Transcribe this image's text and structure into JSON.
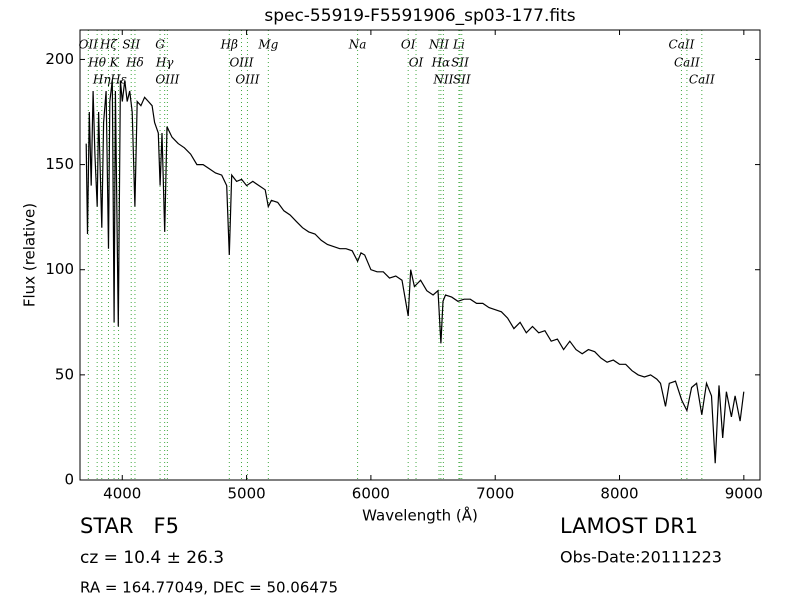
{
  "chart_data": {
    "type": "line",
    "title": "spec-55919-F5591906_sp03-177.fits",
    "x_label": "Wavelength (Å)",
    "y_label": "Flux (relative)",
    "xlim": [
      3660,
      9130
    ],
    "ylim": [
      0,
      214
    ],
    "xticks": [
      4000,
      5000,
      6000,
      7000,
      8000,
      9000
    ],
    "yticks": [
      0,
      50,
      100,
      150,
      200
    ],
    "color": "#000000",
    "line_color": "#44aa44",
    "x": [
      3710,
      3720,
      3735,
      3750,
      3765,
      3780,
      3798,
      3810,
      3835,
      3850,
      3870,
      3889,
      3900,
      3920,
      3934,
      3945,
      3968,
      3985,
      4000,
      4020,
      4040,
      4060,
      4080,
      4102,
      4120,
      4150,
      4180,
      4210,
      4240,
      4260,
      4290,
      4304,
      4320,
      4341,
      4360,
      4400,
      4450,
      4500,
      4550,
      4600,
      4650,
      4700,
      4750,
      4800,
      4840,
      4861,
      4880,
      4920,
      4960,
      5000,
      5050,
      5100,
      5150,
      5175,
      5200,
      5250,
      5300,
      5350,
      5400,
      5450,
      5500,
      5550,
      5600,
      5650,
      5700,
      5750,
      5800,
      5850,
      5893,
      5920,
      5950,
      6000,
      6050,
      6100,
      6150,
      6200,
      6250,
      6300,
      6320,
      6350,
      6400,
      6450,
      6500,
      6540,
      6563,
      6580,
      6600,
      6650,
      6700,
      6750,
      6800,
      6850,
      6900,
      6950,
      7000,
      7050,
      7100,
      7150,
      7200,
      7250,
      7300,
      7350,
      7400,
      7450,
      7500,
      7550,
      7600,
      7650,
      7700,
      7750,
      7800,
      7850,
      7900,
      7950,
      8000,
      8050,
      8100,
      8150,
      8200,
      8250,
      8300,
      8330,
      8370,
      8400,
      8450,
      8500,
      8542,
      8580,
      8620,
      8662,
      8700,
      8740,
      8770,
      8800,
      8830,
      8860,
      8900,
      8930,
      8970,
      9000
    ],
    "values": [
      160,
      117,
      175,
      140,
      185,
      155,
      130,
      175,
      120,
      170,
      185,
      110,
      180,
      190,
      75,
      185,
      73,
      190,
      180,
      190,
      180,
      185,
      175,
      130,
      180,
      178,
      182,
      180,
      178,
      170,
      165,
      140,
      165,
      118,
      168,
      163,
      160,
      158,
      155,
      150,
      150,
      148,
      146,
      145,
      140,
      107,
      145,
      142,
      143,
      140,
      142,
      140,
      138,
      130,
      133,
      132,
      128,
      126,
      123,
      120,
      118,
      117,
      114,
      112,
      111,
      110,
      110,
      109,
      104,
      108,
      107,
      100,
      99,
      99,
      96,
      97,
      95,
      78,
      100,
      92,
      95,
      90,
      88,
      90,
      65,
      85,
      88,
      87,
      85,
      86,
      86,
      84,
      84,
      82,
      81,
      80,
      77,
      72,
      75,
      70,
      73,
      70,
      71,
      66,
      67,
      62,
      66,
      62,
      60,
      62,
      61,
      58,
      56,
      57,
      55,
      55,
      52,
      50,
      49,
      50,
      48,
      46,
      35,
      46,
      47,
      38,
      33,
      44,
      46,
      31,
      46,
      40,
      8,
      45,
      20,
      42,
      30,
      40,
      28,
      42
    ],
    "lines": [
      {
        "label": "OII",
        "x": 3727
      },
      {
        "label": "Hθ",
        "x": 3798
      },
      {
        "label": "Hη",
        "x": 3835
      },
      {
        "label": "Hζ",
        "x": 3889
      },
      {
        "label": "K",
        "x": 3934
      },
      {
        "label": "Hε",
        "x": 3970
      },
      {
        "label": "SII",
        "x": 4072
      },
      {
        "label": "Hδ",
        "x": 4102
      },
      {
        "label": "G",
        "x": 4304
      },
      {
        "label": "Hγ",
        "x": 4341
      },
      {
        "label": "OIII",
        "x": 4363
      },
      {
        "label": "Hβ",
        "x": 4861
      },
      {
        "label": "OIII",
        "x": 4959
      },
      {
        "label": "OIII",
        "x": 5007
      },
      {
        "label": "Mg",
        "x": 5175
      },
      {
        "label": "Na",
        "x": 5893
      },
      {
        "label": "OI",
        "x": 6300
      },
      {
        "label": "OI",
        "x": 6363
      },
      {
        "label": "NII",
        "x": 6548
      },
      {
        "label": "Hα",
        "x": 6563
      },
      {
        "label": "NII",
        "x": 6583
      },
      {
        "label": "Li",
        "x": 6708
      },
      {
        "label": "SII",
        "x": 6717
      },
      {
        "label": "SII",
        "x": 6731
      },
      {
        "label": "CaII",
        "x": 8498
      },
      {
        "label": "CaII",
        "x": 8542
      },
      {
        "label": "CaII",
        "x": 8662
      }
    ],
    "class_text": "STAR   F5",
    "cz_text": "cz = 10.4 ± 26.3",
    "coord_text": "RA = 164.77049, DEC = 50.06475",
    "survey_text": "LAMOST DR1",
    "date_text": "Obs-Date:20111223"
  }
}
